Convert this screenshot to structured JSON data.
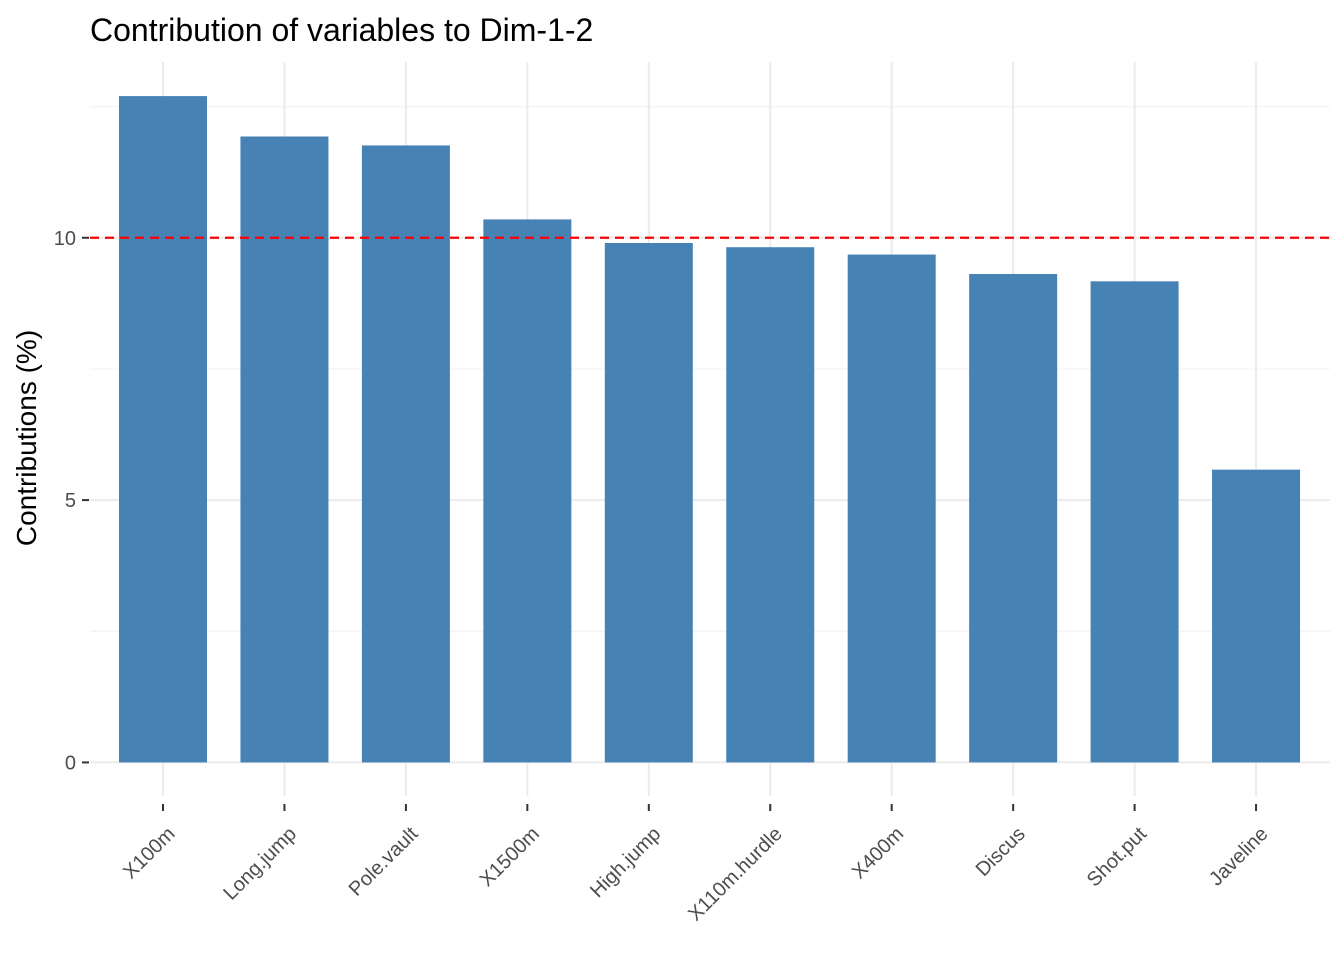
{
  "colors": {
    "bar": "#4682b4",
    "reference_line": "#ff0000",
    "grid_major": "#ebebeb",
    "grid_minor": "#f3f3f3",
    "tick_text": "#4d4d4d",
    "axis_ticks": "#333333"
  },
  "chart_data": {
    "type": "bar",
    "title": "Contribution of variables to Dim-1-2",
    "xlabel": "",
    "ylabel": "Contributions (%)",
    "categories": [
      "X100m",
      "Long.jump",
      "Pole.vault",
      "X1500m",
      "High.jump",
      "X110m.hurdle",
      "X400m",
      "Discus",
      "Shot.put",
      "Javeline"
    ],
    "values": [
      12.7,
      11.93,
      11.76,
      10.35,
      9.9,
      9.82,
      9.68,
      9.31,
      9.17,
      5.58
    ],
    "y_ticks": [
      0,
      5,
      10
    ],
    "y_tick_labels": [
      "0",
      "5",
      "10"
    ],
    "ylim": [
      -0.64,
      13.35
    ],
    "reference_line": {
      "value": 10,
      "style": "dashed",
      "color": "#ff0000"
    },
    "grid": true,
    "legend": "none"
  }
}
